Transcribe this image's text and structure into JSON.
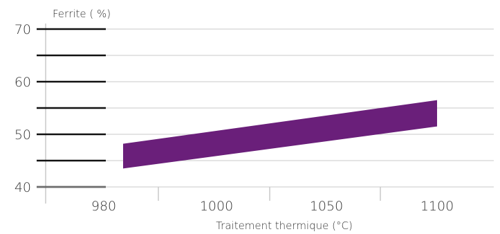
{
  "chart_data": {
    "type": "area",
    "title": "",
    "ylabel": "Ferrite ( %)",
    "xlabel": "Traitement thermique (°C)",
    "x_ticks": [
      980,
      1000,
      1050,
      1100
    ],
    "y_ticks": [
      40,
      50,
      60,
      70
    ],
    "ylim": [
      40,
      70
    ],
    "grid": true,
    "colors": {
      "band": "#6a1f7a",
      "axis": "#111111",
      "grid": "#c8c8c8",
      "text": "#333333"
    },
    "series": [
      {
        "points": [
          {
            "x": 985,
            "y_low": 43.5,
            "y_high": 48.2
          },
          {
            "x": 1100,
            "y_low": 51.5,
            "y_high": 56.5
          }
        ]
      }
    ]
  }
}
